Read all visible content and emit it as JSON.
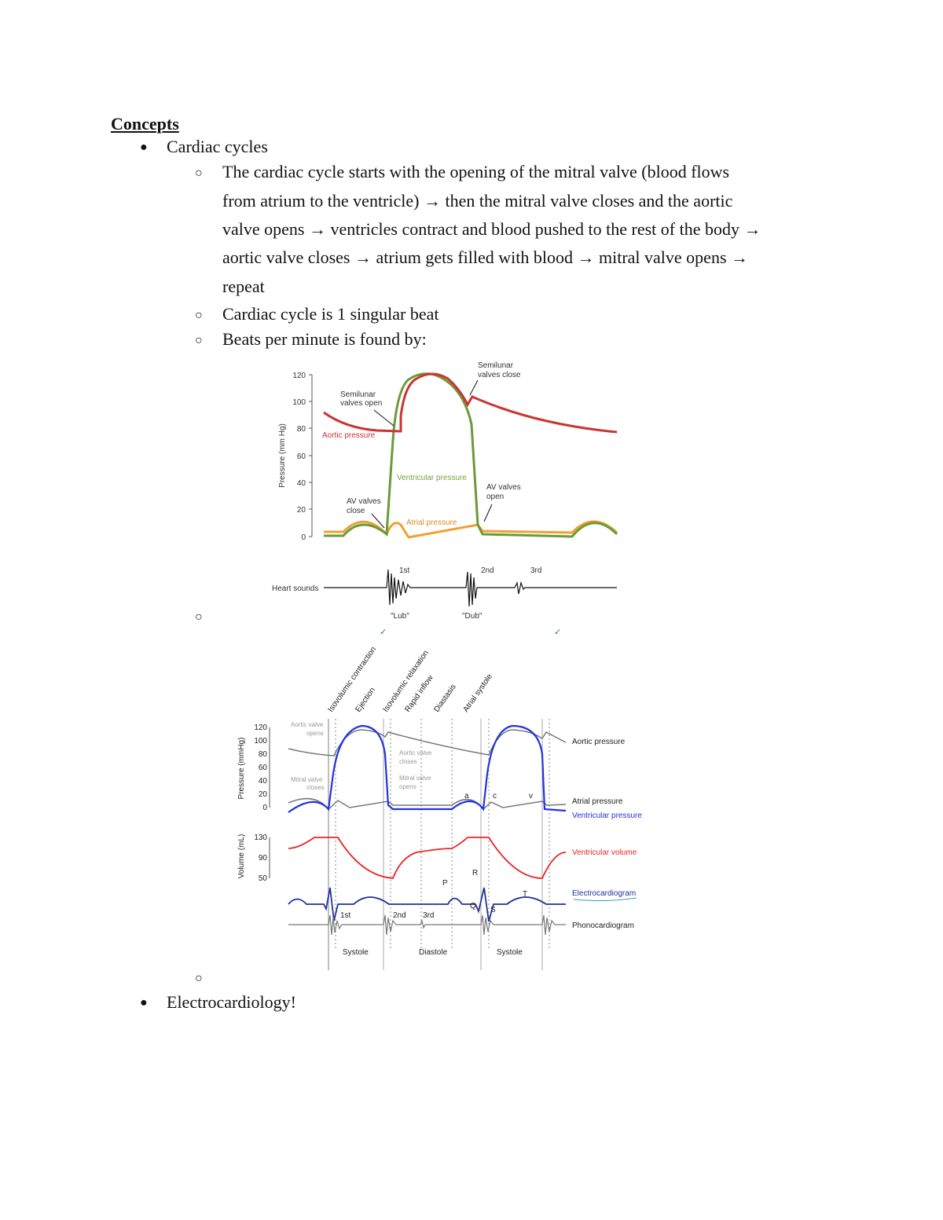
{
  "heading": "Concepts",
  "bullets": [
    {
      "label": "Cardiac cycles",
      "bullet_icon": "filled-circle"
    },
    {
      "label": "Electrocardiology!",
      "bullet_icon": "filled-circle"
    }
  ],
  "sub_bullets": {
    "cycle_description": [
      "The cardiac cycle starts with the opening of the mitral valve (blood flows",
      "from atrium to the ventricle) → then the mitral valve closes and the aortic",
      "valve opens →  ventricles contract and blood pushed to the rest of the body →",
      "aortic valve closes → atrium gets filled with blood → mitral valve opens →",
      "repeat"
    ],
    "single_beat": "Cardiac cycle is 1 singular beat",
    "bpm": "Beats per minute is found by:",
    "bullet_icon": "hollow-circle"
  },
  "figure1": {
    "ylabel": "Pressure (mm Hg)",
    "yticks": [
      "120",
      "100",
      "80",
      "60",
      "40",
      "20",
      "0"
    ],
    "labels": {
      "semilunar_open": [
        "Semilunar",
        "valves open"
      ],
      "semilunar_close": [
        "Semilunar",
        "valves close"
      ],
      "aortic": "Aortic pressure",
      "ventricular": "Ventricular pressure",
      "av_open": [
        "AV valves",
        "open"
      ],
      "av_close": [
        "AV valves",
        "close"
      ],
      "atrial": "Atrial pressure",
      "heart_sounds": "Heart sounds",
      "s1": "1st",
      "s2": "2nd",
      "s3": "3rd",
      "lub": "\"Lub\"",
      "dub": "\"Dub\""
    },
    "colors": {
      "aortic": "#cc3333",
      "ventricular": "#6a9a3a",
      "atrial": "#f0a030"
    }
  },
  "figure2": {
    "phases": [
      "Isovolumic contraction",
      "Ejection",
      "Isovolumic relaxation",
      "Rapid inflow",
      "Diastasis",
      "Atrial systole"
    ],
    "pressure_ylabel": "Pressure (mmHg)",
    "pressure_ticks": [
      "120",
      "100",
      "80",
      "60",
      "40",
      "20",
      "0"
    ],
    "volume_ylabel": "Volume (mL)",
    "volume_ticks": [
      "130",
      "90",
      "50"
    ],
    "annotations": {
      "aortic_opens": [
        "Aortic valve",
        "opens"
      ],
      "aortic_closes": [
        "Aortic valve",
        "closes"
      ],
      "mitral_closes": [
        "Mitral valve",
        "closes"
      ],
      "mitral_opens": [
        "Mitral valve",
        "opens"
      ]
    },
    "wave_letters": {
      "a": "a",
      "c": "c",
      "v": "v",
      "P": "P",
      "Q": "Q",
      "R": "R",
      "S": "S",
      "T": "T"
    },
    "series_labels": {
      "aortic": "Aortic pressure",
      "atrial": "Atrial pressure",
      "ventricular_pressure": "Ventricular pressure",
      "ventricular_volume": "Ventricular volume",
      "ecg": "Electrocardiogram",
      "phono": "Phonocardiogram"
    },
    "sounds": [
      "1st",
      "2nd",
      "3rd"
    ],
    "periods": [
      "Systole",
      "Diastole",
      "Systole"
    ],
    "colors": {
      "pressure": "#2233dd",
      "volume": "#ee2222",
      "ecg": "#223399",
      "gray": "#777777"
    }
  }
}
